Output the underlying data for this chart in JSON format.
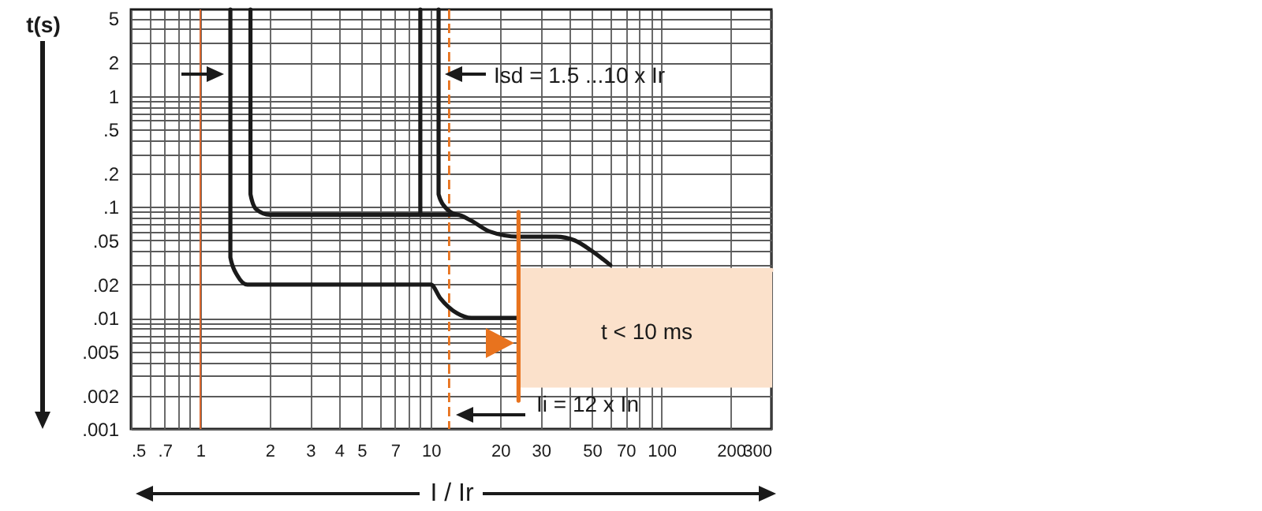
{
  "chart_data": {
    "type": "line",
    "xlabel": "I / Ir",
    "ylabel": "t(s)",
    "log": "xy",
    "grid": true,
    "xlim": [
      0.5,
      300
    ],
    "ylim": [
      0.001,
      6
    ],
    "xticks": [
      {
        "value": 0.5,
        "label": ".5"
      },
      {
        "value": 0.6,
        "label": null
      },
      {
        "value": 0.7,
        "label": ".7"
      },
      {
        "value": 0.8,
        "label": null
      },
      {
        "value": 0.9,
        "label": null
      },
      1,
      2,
      3,
      4,
      5,
      {
        "value": 6,
        "label": null
      },
      7,
      {
        "value": 8,
        "label": null
      },
      {
        "value": 9,
        "label": null
      },
      10,
      20,
      30,
      {
        "value": 40,
        "label": null
      },
      50,
      {
        "value": 60,
        "label": null
      },
      70,
      {
        "value": 80,
        "label": null
      },
      {
        "value": 90,
        "label": null
      },
      100,
      200,
      300
    ],
    "yticks": [
      {
        "value": 0.001,
        "label": ".001"
      },
      {
        "value": 0.002,
        "label": ".002"
      },
      {
        "value": 0.003,
        "label": null
      },
      {
        "value": 0.004,
        "label": null
      },
      {
        "value": 0.005,
        "label": ".005"
      },
      {
        "value": 0.006,
        "label": null
      },
      {
        "value": 0.007,
        "label": null
      },
      {
        "value": 0.008,
        "label": null
      },
      {
        "value": 0.009,
        "label": null
      },
      {
        "value": 0.01,
        "label": ".01"
      },
      {
        "value": 0.02,
        "label": ".02"
      },
      {
        "value": 0.03,
        "label": null
      },
      {
        "value": 0.04,
        "label": null
      },
      {
        "value": 0.05,
        "label": ".05"
      },
      {
        "value": 0.06,
        "label": null
      },
      {
        "value": 0.07,
        "label": null
      },
      {
        "value": 0.08,
        "label": null
      },
      {
        "value": 0.09,
        "label": null
      },
      {
        "value": 0.1,
        "label": ".1"
      },
      {
        "value": 0.2,
        "label": ".2"
      },
      {
        "value": 0.3,
        "label": null
      },
      {
        "value": 0.4,
        "label": null
      },
      {
        "value": 0.5,
        "label": ".5"
      },
      {
        "value": 0.6,
        "label": null
      },
      {
        "value": 0.7,
        "label": null
      },
      {
        "value": 0.8,
        "label": null
      },
      {
        "value": 0.9,
        "label": null
      },
      1,
      2,
      {
        "value": 3,
        "label": null
      },
      {
        "value": 4,
        "label": null
      },
      5
    ],
    "series": [
      {
        "type": "line",
        "color": "#fbe1cb",
        "x": [
          24,
          300
        ],
        "values": [
          0.027,
          0.027
        ],
        "upper": [
          0.027,
          0.027
        ],
        "lower": [
          0.0024,
          0.0024
        ]
      },
      {
        "color": "#1a1a1a",
        "x": [
          1.35,
          1.35,
          1.45,
          1.6,
          10,
          11,
          13,
          15,
          24
        ],
        "values": [
          6,
          0.035,
          0.024,
          0.02,
          0.02,
          0.015,
          0.011,
          0.01,
          0.01
        ]
      },
      {
        "color": "#1a1a1a",
        "x": [
          1.65,
          1.65,
          1.75,
          2,
          13,
          15,
          18,
          24,
          35,
          42,
          50,
          60
        ],
        "values": [
          6,
          0.13,
          0.095,
          0.085,
          0.085,
          0.075,
          0.06,
          0.054,
          0.054,
          0.05,
          0.04,
          0.03
        ]
      },
      {
        "color": "#1a1a1a",
        "x": [
          9,
          9
        ],
        "values": [
          6,
          0.085
        ]
      },
      {
        "color": "#1a1a1a",
        "x": [
          10.8,
          10.8,
          11.5,
          13
        ],
        "values": [
          6,
          0.13,
          0.1,
          0.085
        ]
      },
      {
        "color": "#e8731e",
        "x": [
          24,
          24
        ],
        "values": [
          0.09,
          0.0018
        ]
      }
    ],
    "ref_lines": [
      {
        "axis": "x",
        "value": 1,
        "color": "#d9652b",
        "line_style": "solid"
      },
      {
        "axis": "x",
        "value": 12,
        "color": "#e8731e",
        "line_style": "dashed"
      }
    ],
    "annotations": [
      {
        "text": "Isd = 1.5 ...10 x Ir",
        "x": 10.8,
        "y": 1.5
      },
      "Ii = 12 x In",
      "t < 10 ms"
    ]
  }
}
